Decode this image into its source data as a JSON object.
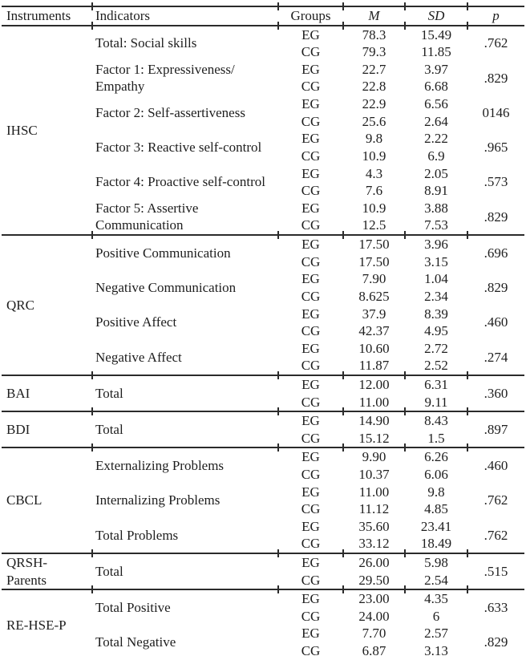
{
  "page": {
    "background": "#ffffff",
    "text_color": "#1e1e1e",
    "rule_color": "#2b2b2b"
  },
  "table": {
    "columns": [
      "Instruments",
      "Indicators",
      "Groups",
      "M",
      "SD",
      "p"
    ],
    "sections": [
      {
        "instrument": "IHSC",
        "indicators": [
          {
            "label": "Total: Social skills",
            "p": ".762",
            "rows": [
              {
                "group": "EG",
                "m": "78.3",
                "sd": "15.49"
              },
              {
                "group": "CG",
                "m": "79.3",
                "sd": "11.85"
              }
            ]
          },
          {
            "label": "Factor 1: Expressiveness/\nEmpathy",
            "p": ".829",
            "rows": [
              {
                "group": "EG",
                "m": "22.7",
                "sd": "3.97"
              },
              {
                "group": "CG",
                "m": "22.8",
                "sd": "6.68"
              }
            ]
          },
          {
            "label": "Factor 2: Self-assertiveness",
            "p": "0146",
            "rows": [
              {
                "group": "EG",
                "m": "22.9",
                "sd": "6.56"
              },
              {
                "group": "CG",
                "m": "25.6",
                "sd": "2.64"
              }
            ]
          },
          {
            "label": "Factor 3: Reactive self-control",
            "p": ".965",
            "rows": [
              {
                "group": "EG",
                "m": "9.8",
                "sd": "2.22"
              },
              {
                "group": "CG",
                "m": "10.9",
                "sd": "6.9"
              }
            ]
          },
          {
            "label": "Factor 4: Proactive self-control",
            "p": ".573",
            "rows": [
              {
                "group": "EG",
                "m": "4.3",
                "sd": "2.05"
              },
              {
                "group": "CG",
                "m": "7.6",
                "sd": "8.91"
              }
            ]
          },
          {
            "label": "Factor 5: Assertive\nCommunication",
            "p": ".829",
            "rows": [
              {
                "group": "EG",
                "m": "10.9",
                "sd": "3.88"
              },
              {
                "group": "CG",
                "m": "12.5",
                "sd": "7.53"
              }
            ]
          }
        ]
      },
      {
        "instrument": "QRC",
        "indicators": [
          {
            "label": "Positive Communication",
            "p": ".696",
            "rows": [
              {
                "group": "EG",
                "m": "17.50",
                "sd": "3.96"
              },
              {
                "group": "CG",
                "m": "17.50",
                "sd": "3.15"
              }
            ]
          },
          {
            "label": "Negative Communication",
            "p": ".829",
            "rows": [
              {
                "group": "EG",
                "m": "7.90",
                "sd": "1.04"
              },
              {
                "group": "CG",
                "m": "8.625",
                "sd": "2.34"
              }
            ]
          },
          {
            "label": "Positive Affect",
            "p": ".460",
            "rows": [
              {
                "group": "EG",
                "m": "37.9",
                "sd": "8.39"
              },
              {
                "group": "CG",
                "m": "42.37",
                "sd": "4.95"
              }
            ]
          },
          {
            "label": "Negative Affect",
            "p": ".274",
            "rows": [
              {
                "group": "EG",
                "m": "10.60",
                "sd": "2.72"
              },
              {
                "group": "CG",
                "m": "11.87",
                "sd": "2.52"
              }
            ]
          }
        ]
      },
      {
        "instrument": "BAI",
        "indicators": [
          {
            "label": "Total",
            "p": ".360",
            "rows": [
              {
                "group": "EG",
                "m": "12.00",
                "sd": "6.31"
              },
              {
                "group": "CG",
                "m": "11.00",
                "sd": "9.11"
              }
            ]
          }
        ]
      },
      {
        "instrument": "BDI",
        "indicators": [
          {
            "label": "Total",
            "p": ".897",
            "rows": [
              {
                "group": "EG",
                "m": "14.90",
                "sd": "8.43"
              },
              {
                "group": "CG",
                "m": "15.12",
                "sd": "1.5"
              }
            ]
          }
        ]
      },
      {
        "instrument": "CBCL",
        "indicators": [
          {
            "label": "Externalizing Problems",
            "p": ".460",
            "rows": [
              {
                "group": "EG",
                "m": "9.90",
                "sd": "6.26"
              },
              {
                "group": "CG",
                "m": "10.37",
                "sd": "6.06"
              }
            ]
          },
          {
            "label": "Internalizing Problems",
            "p": ".762",
            "rows": [
              {
                "group": "EG",
                "m": "11.00",
                "sd": "9.8"
              },
              {
                "group": "CG",
                "m": "11.12",
                "sd": "4.85"
              }
            ]
          },
          {
            "label": "Total Problems",
            "p": ".762",
            "rows": [
              {
                "group": "EG",
                "m": "35.60",
                "sd": "23.41"
              },
              {
                "group": "CG",
                "m": "33.12",
                "sd": "18.49"
              }
            ]
          }
        ]
      },
      {
        "instrument": "QRSH-\nParents",
        "indicators": [
          {
            "label": "Total",
            "p": ".515",
            "rows": [
              {
                "group": "EG",
                "m": "26.00",
                "sd": "5.98"
              },
              {
                "group": "CG",
                "m": "29.50",
                "sd": "2.54"
              }
            ]
          }
        ]
      },
      {
        "instrument": "RE-HSE-P",
        "indicators": [
          {
            "label": "Total Positive",
            "p": ".633",
            "rows": [
              {
                "group": "EG",
                "m": "23.00",
                "sd": "4.35"
              },
              {
                "group": "CG",
                "m": "24.00",
                "sd": "6"
              }
            ]
          },
          {
            "label": "Total Negative",
            "p": ".829",
            "rows": [
              {
                "group": "EG",
                "m": "7.70",
                "sd": "2.57"
              },
              {
                "group": "CG",
                "m": "6.87",
                "sd": "3.13"
              }
            ]
          }
        ]
      }
    ]
  }
}
